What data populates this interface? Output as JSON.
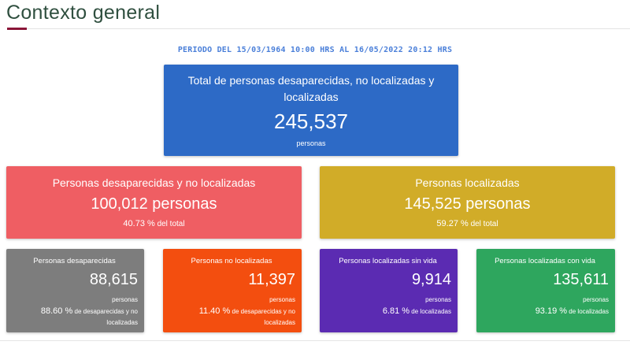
{
  "page": {
    "title": "Contexto general",
    "period": "PERIODO DEL 15/03/1964 10:00 HRS AL 16/05/2022 20:12 HRS"
  },
  "total": {
    "label": "Total de personas desaparecidas, no localizadas y localizadas",
    "value": "245,537",
    "unit": "personas",
    "color": "#2d6ac6"
  },
  "missing": {
    "label": "Personas desaparecidas y no localizadas",
    "value": "100,012 personas",
    "percent": "40.73 %",
    "percent_suffix": "del total",
    "color": "#ef5e63"
  },
  "located": {
    "label": "Personas localizadas",
    "value": "145,525 personas",
    "percent": "59.27 %",
    "percent_suffix": "del total",
    "color": "#d1ac28"
  },
  "disappeared": {
    "label": "Personas desaparecidas",
    "value": "88,615",
    "unit": "personas",
    "percent": "88.60 %",
    "percent_suffix": "de desaparecidas y no localizadas",
    "color": "#7d7d7d"
  },
  "not_located": {
    "label": "Personas no localizadas",
    "value": "11,397",
    "unit": "personas",
    "percent": "11.40 %",
    "percent_suffix": "de desaparecidas y no localizadas",
    "color": "#f34e0f"
  },
  "located_dead": {
    "label": "Personas localizadas sin vida",
    "value": "9,914",
    "unit": "personas",
    "percent": "6.81 %",
    "percent_suffix": "de localizadas",
    "color": "#5b2bb2"
  },
  "located_alive": {
    "label": "Personas localizadas con vida",
    "value": "135,611",
    "unit": "personas",
    "percent": "93.19 %",
    "percent_suffix": "de localizadas",
    "color": "#2ea65e"
  }
}
